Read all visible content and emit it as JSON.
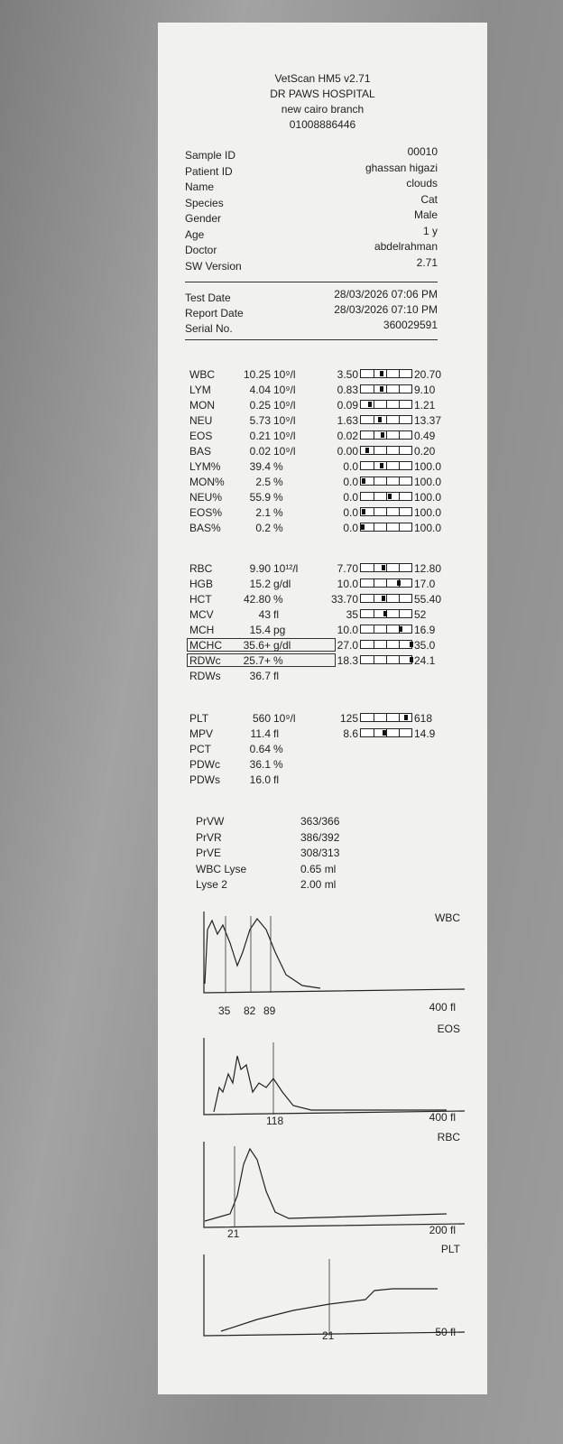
{
  "header": {
    "title": "VetScan HM5 v2.71",
    "clinic": "DR PAWS HOSPITAL",
    "branch": "new cairo branch",
    "phone": "01008886446"
  },
  "patient": {
    "rows": [
      [
        "Sample ID",
        "00010"
      ],
      [
        "Patient ID",
        "ghassan higazi"
      ],
      [
        "Name",
        "clouds"
      ],
      [
        "Species",
        "Cat"
      ],
      [
        "Gender",
        "Male"
      ],
      [
        "Age",
        "1 y"
      ],
      [
        "Doctor",
        "abdelrahman"
      ],
      [
        "SW Version",
        "2.71"
      ]
    ]
  },
  "report": {
    "rows": [
      [
        "Test Date",
        "28/03/2026 07:06 PM"
      ],
      [
        "Report Date",
        "28/03/2026 07:10 PM"
      ],
      [
        "Serial No.",
        "360029591"
      ]
    ]
  },
  "results": [
    {
      "rows": [
        [
          "WBC",
          "10.25",
          "10⁹/l",
          "3.50",
          "20.70"
        ],
        [
          "LYM",
          "4.04",
          "10⁹/l",
          "0.83",
          "9.10"
        ],
        [
          "MON",
          "0.25",
          "10⁹/l",
          "0.09",
          "1.21"
        ],
        [
          "NEU",
          "5.73",
          "10⁹/l",
          "1.63",
          "13.37"
        ],
        [
          "EOS",
          "0.21",
          "10⁹/l",
          "0.02",
          "0.49"
        ],
        [
          "BAS",
          "0.02",
          "10⁹/l",
          "0.00",
          "0.20"
        ],
        [
          "LYM%",
          "39.4",
          "%",
          "0.0",
          "100.0"
        ],
        [
          "MON%",
          "2.5",
          "%",
          "0.0",
          "100.0"
        ],
        [
          "NEU%",
          "55.9",
          "%",
          "0.0",
          "100.0"
        ],
        [
          "EOS%",
          "2.1",
          "%",
          "0.0",
          "100.0"
        ],
        [
          "BAS%",
          "0.2",
          "%",
          "0.0",
          "100.0"
        ]
      ]
    },
    {
      "rows": [
        [
          "RBC",
          "9.90",
          "10¹²/l",
          "7.70",
          "12.80"
        ],
        [
          "HGB",
          "15.2",
          "g/dl",
          "10.0",
          "17.0"
        ],
        [
          "HCT",
          "42.80",
          "%",
          "33.70",
          "55.40"
        ],
        [
          "MCV",
          "43",
          "fl",
          "35",
          "52"
        ],
        [
          "MCH",
          "15.4",
          "pg",
          "10.0",
          "16.9"
        ],
        [
          "MCHC",
          "35.6+",
          "g/dl",
          "27.0",
          "35.0"
        ],
        [
          "RDWc",
          "25.7+",
          "%",
          "18.3",
          "24.1"
        ],
        [
          "RDWs",
          "36.7",
          "fl"
        ]
      ]
    },
    {
      "rows": [
        [
          "PLT",
          "560",
          "10⁹/l",
          "125",
          "618"
        ],
        [
          "MPV",
          "11.4",
          "fl",
          "8.6",
          "14.9"
        ],
        [
          "PCT",
          "0.64",
          "%"
        ],
        [
          "PDWc",
          "36.1",
          "%"
        ],
        [
          "PDWs",
          "16.0",
          "fl"
        ]
      ]
    }
  ],
  "flags": {
    "rows": [
      [
        "PrVW",
        "363/366"
      ],
      [
        "PrVR",
        "386/392"
      ],
      [
        "PrVE",
        "308/313"
      ],
      [
        "WBC Lyse",
        "0.65 ml"
      ],
      [
        "Lyse 2",
        "2.00 ml"
      ]
    ]
  },
  "histograms": [
    {
      "title": "WBC",
      "ticks": [
        "35",
        "82",
        "89"
      ],
      "end": "400 fl"
    },
    {
      "title": "EOS",
      "ticks": [
        "118"
      ],
      "end": "400 fl"
    },
    {
      "title": "RBC",
      "ticks": [
        "21"
      ],
      "end": "200 fl"
    },
    {
      "title": "PLT",
      "ticks": [
        "21"
      ],
      "end": "50 fl"
    }
  ]
}
